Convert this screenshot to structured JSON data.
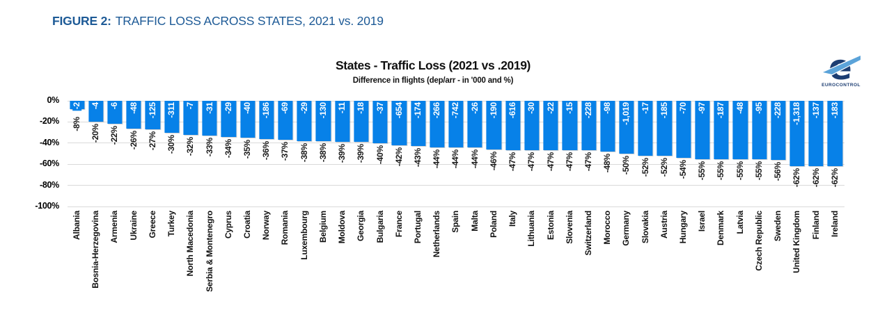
{
  "figure_title": {
    "prefix": "FIGURE 2:",
    "text": "TRAFFIC LOSS ACROSS STATES, 2021 vs. 2019"
  },
  "logo": {
    "name": "eurocontrol-logo",
    "label": "EUROCONTROL",
    "navy": "#1c3d72",
    "swoosh_blue": "#5ba3d9"
  },
  "chart_data": {
    "type": "bar",
    "title": "States - Traffic Loss (2021 vs .2019)",
    "subtitle": "Difference in flights (dep/arr - in '000 and %)",
    "ylim": [
      -100,
      0
    ],
    "yticks": [
      0,
      -20,
      -40,
      -60,
      -80,
      -100
    ],
    "ytick_labels": [
      "0%",
      "-20%",
      "-40%",
      "-60%",
      "-80%",
      "-100%"
    ],
    "grid": true,
    "legend": "none",
    "bar_color": "#0781e8",
    "categories": [
      "Albania",
      "Bosnia-Herzegovina",
      "Armenia",
      "Ukraine",
      "Greece",
      "Turkey",
      "North Macedonia",
      "Serbia & Montenegro",
      "Cyprus",
      "Croatia",
      "Norway",
      "Romania",
      "Luxembourg",
      "Belgium",
      "Moldova",
      "Georgia",
      "Bulgaria",
      "France",
      "Portugal",
      "Netherlands",
      "Spain",
      "Malta",
      "Poland",
      "Italy",
      "Lithuania",
      "Estonia",
      "Slovenia",
      "Switzerland",
      "Morocco",
      "Germany",
      "Slovakia",
      "Austria",
      "Hungary",
      "Israel",
      "Denmark",
      "Latvia",
      "Czech Republic",
      "Sweden",
      "United Kingdom",
      "Finland",
      "Ireland"
    ],
    "series": [
      {
        "name": "Difference in flights ('000)",
        "values": [
          -2,
          -4,
          -6,
          -48,
          -125,
          -311,
          -7,
          -31,
          -29,
          -40,
          -186,
          -69,
          -29,
          -130,
          -11,
          -18,
          -37,
          -654,
          -174,
          -266,
          -742,
          -26,
          -190,
          -616,
          -30,
          -22,
          -15,
          -228,
          -98,
          -1019,
          -17,
          -185,
          -70,
          -97,
          -187,
          -48,
          -95,
          -228,
          -1318,
          -137,
          -183
        ],
        "labels": [
          "-2",
          "-4",
          "-6",
          "-48",
          "-125",
          "-311",
          "-7",
          "-31",
          "-29",
          "-40",
          "-186",
          "-69",
          "-29",
          "-130",
          "-11",
          "-18",
          "-37",
          "-654",
          "-174",
          "-266",
          "-742",
          "-26",
          "-190",
          "-616",
          "-30",
          "-22",
          "-15",
          "-228",
          "-98",
          "-1,019",
          "-17",
          "-185",
          "-70",
          "-97",
          "-187",
          "-48",
          "-95",
          "-228",
          "-1,318",
          "-137",
          "-183"
        ]
      },
      {
        "name": "Difference in flights (%)",
        "values": [
          -8,
          -20,
          -22,
          -26,
          -27,
          -30,
          -32,
          -33,
          -34,
          -35,
          -36,
          -37,
          -38,
          -38,
          -39,
          -39,
          -40,
          -42,
          -43,
          -44,
          -44,
          -44,
          -46,
          -47,
          -47,
          -47,
          -47,
          -47,
          -48,
          -50,
          -52,
          -52,
          -54,
          -55,
          -55,
          -55,
          -55,
          -56,
          -62,
          -62,
          -62
        ],
        "labels": [
          "-8%",
          "-20%",
          "-22%",
          "-26%",
          "-27%",
          "-30%",
          "-32%",
          "-33%",
          "-34%",
          "-35%",
          "-36%",
          "-37%",
          "-38%",
          "-38%",
          "-39%",
          "-39%",
          "-40%",
          "-42%",
          "-43%",
          "-44%",
          "-44%",
          "-44%",
          "-46%",
          "-47%",
          "-47%",
          "-47%",
          "-47%",
          "-47%",
          "-48%",
          "-50%",
          "-52%",
          "-52%",
          "-54%",
          "-55%",
          "-55%",
          "-55%",
          "-55%",
          "-56%",
          "-62%",
          "-62%",
          "-62%"
        ]
      }
    ]
  }
}
